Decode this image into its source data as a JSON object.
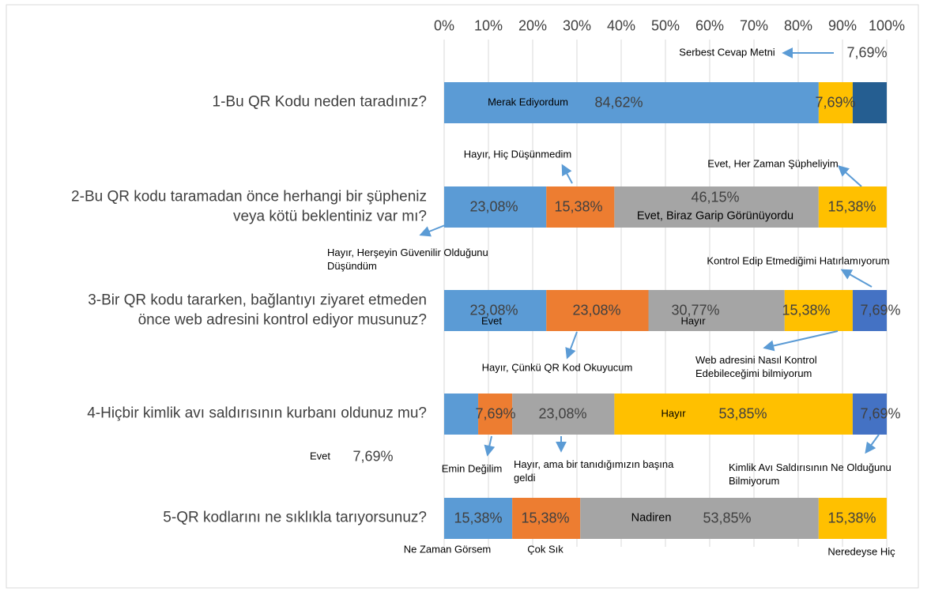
{
  "chart_data": {
    "type": "stacked-bar",
    "categories": [
      "1-Bu QR Kodu neden taradınız?",
      "2-Bu QR kodu taramadan önce herhangi bir şüpheniz\nveya kötü beklentiniz var mı?",
      "3-Bir QR kodu tararken, bağlantıyı ziyaret etmeden\nönce web adresini kontrol ediyor musunuz?",
      "4-Hiçbir kimlik avı saldırısının kurbanı oldunuz mu?",
      "5-QR kodlarını ne sıklıkla tarıyorsunuz?"
    ],
    "bars": [
      {
        "segments": [
          {
            "name": "Merak Ediyordum",
            "color": "#5b9bd5",
            "value": 84.62,
            "value_label": "84,62%"
          },
          {
            "name": null,
            "color": "#ffc000",
            "value": 7.69,
            "value_label": "7,69%"
          },
          {
            "name": "Serbest Cevap Metni",
            "color": "#255e91",
            "value": 7.69,
            "value_label": "7,69%"
          }
        ]
      },
      {
        "segments": [
          {
            "name": "Hayır, Herşeyin Güvenilir Olduğunu\nDüşündüm",
            "color": "#5b9bd5",
            "value": 23.08,
            "value_label": "23,08%"
          },
          {
            "name": "Hayır, Hiç Düşünmedim",
            "color": "#ed7d31",
            "value": 15.38,
            "value_label": "15,38%"
          },
          {
            "name": "Evet, Biraz Garip Görünüyordu",
            "color": "#a5a5a5",
            "value": 46.15,
            "value_label": "46,15%"
          },
          {
            "name": "Evet, Her Zaman Şüpheliyim",
            "color": "#ffc000",
            "value": 15.38,
            "value_label": "15,38%"
          }
        ]
      },
      {
        "segments": [
          {
            "name": "Evet",
            "color": "#5b9bd5",
            "value": 23.08,
            "value_label": "23,08%"
          },
          {
            "name": "Hayır, Çünkü QR Kod Okuyucum",
            "color": "#ed7d31",
            "value": 23.08,
            "value_label": "23,08%"
          },
          {
            "name": "Hayır",
            "color": "#a5a5a5",
            "value": 30.77,
            "value_label": "30,77%"
          },
          {
            "name": "Web adresini Nasıl Kontrol\nEdebileceğimi bilmiyorum",
            "color": "#ffc000",
            "value": 15.38,
            "value_label": "15,38%"
          },
          {
            "name": "Kontrol Edip Etmediğimi Hatırlamıyorum",
            "color": "#4472c4",
            "value": 7.69,
            "value_label": "7,69%"
          }
        ]
      },
      {
        "segments": [
          {
            "name": "Evet",
            "color": "#5b9bd5",
            "value": 7.69,
            "value_label": "7,69%"
          },
          {
            "name": "Emin Değilim",
            "color": "#ed7d31",
            "value": 7.69,
            "value_label": "7,69%"
          },
          {
            "name": "Hayır, ama bir tanıdığımızın başına\ngeldi",
            "color": "#a5a5a5",
            "value": 23.08,
            "value_label": "23,08%"
          },
          {
            "name": "Hayır",
            "color": "#ffc000",
            "value": 53.85,
            "value_label": "53,85%"
          },
          {
            "name": "Kimlik Avı Saldırısının Ne Olduğunu\nBilmiyorum",
            "color": "#4472c4",
            "value": 7.69,
            "value_label": "7,69%"
          }
        ]
      },
      {
        "segments": [
          {
            "name": "Ne Zaman Görsem",
            "color": "#5b9bd5",
            "value": 15.38,
            "value_label": "15,38%"
          },
          {
            "name": "Çok Sık",
            "color": "#ed7d31",
            "value": 15.38,
            "value_label": "15,38%"
          },
          {
            "name": "Nadiren",
            "color": "#a5a5a5",
            "value": 53.85,
            "value_label": "53,85%"
          },
          {
            "name": "Neredeyse Hiç",
            "color": "#ffc000",
            "value": 15.38,
            "value_label": "15,38%"
          }
        ]
      }
    ],
    "xlim": [
      0,
      100
    ],
    "xticks": [
      {
        "value": 0,
        "label": "0%"
      },
      {
        "value": 10,
        "label": "10%"
      },
      {
        "value": 20,
        "label": "20%"
      },
      {
        "value": 30,
        "label": "30%"
      },
      {
        "value": 40,
        "label": "40%"
      },
      {
        "value": 50,
        "label": "50%"
      },
      {
        "value": 60,
        "label": "60%"
      },
      {
        "value": 70,
        "label": "70%"
      },
      {
        "value": 80,
        "label": "80%"
      },
      {
        "value": 90,
        "label": "90%"
      },
      {
        "value": 100,
        "label": "100%"
      }
    ],
    "grid": true
  }
}
